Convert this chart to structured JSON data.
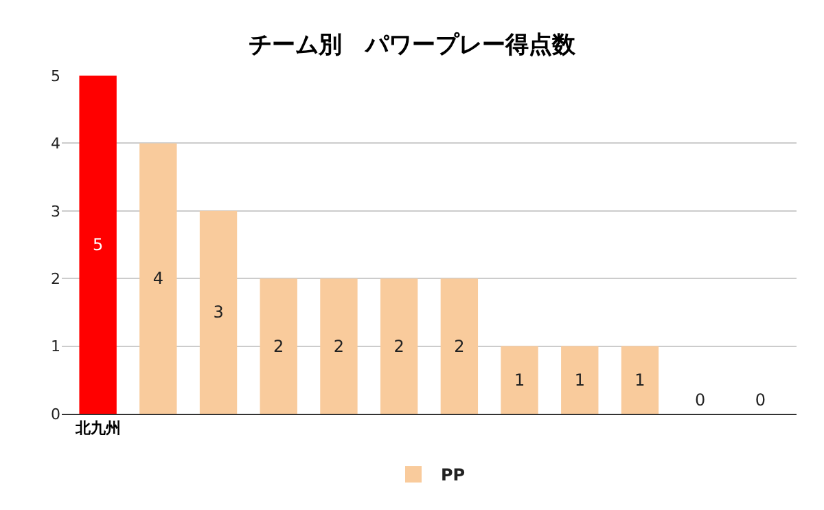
{
  "chart_data": {
    "type": "bar",
    "title": "チーム別　パワープレー得点数",
    "categories": [
      "北九州",
      null,
      null,
      null,
      null,
      null,
      null,
      null,
      null,
      null,
      null,
      null
    ],
    "series": [
      {
        "name": "PP",
        "color": "#f9cb9c",
        "colors": [
          "#ff0000",
          "#f9cb9c",
          "#f9cb9c",
          "#f9cb9c",
          "#f9cb9c",
          "#f9cb9c",
          "#f9cb9c",
          "#f9cb9c",
          "#f9cb9c",
          "#f9cb9c",
          "#f9cb9c",
          "#f9cb9c"
        ],
        "values": [
          5,
          4,
          3,
          2,
          2,
          2,
          2,
          1,
          1,
          1,
          0,
          0
        ]
      }
    ],
    "ylim": [
      0,
      5
    ],
    "yticks": [
      0,
      1,
      2,
      3,
      4,
      5
    ],
    "grid": "y",
    "legend": "bottom",
    "data_labels": true
  }
}
